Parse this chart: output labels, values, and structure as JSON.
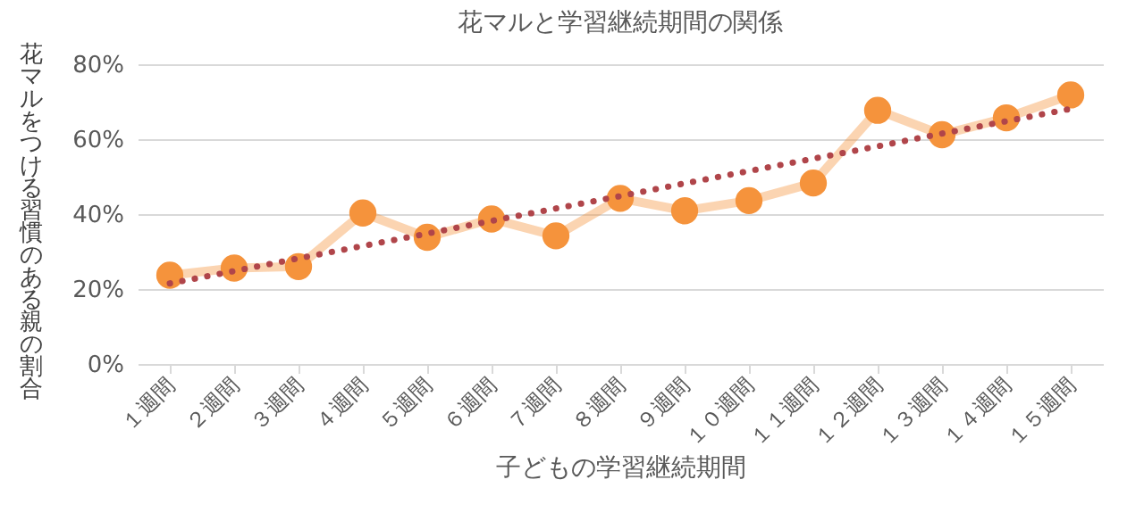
{
  "chart_data": {
    "type": "line",
    "title": "花マルと学習継続期間の関係",
    "xlabel": "子どもの学習継続期間",
    "ylabel": "花マルをつける習慣のある親の割合",
    "categories": [
      "１週間",
      "２週間",
      "３週間",
      "４週間",
      "５週間",
      "６週間",
      "７週間",
      "８週間",
      "９週間",
      "１０週間",
      "１１週間",
      "１２週間",
      "１３週間",
      "１４週間",
      "１５週間"
    ],
    "series": [
      {
        "type": "line",
        "color": "#f5933c",
        "marker": "circle",
        "line_style": "solid",
        "values": [
          23.7,
          25.6,
          26.0,
          40.3,
          33.8,
          38.7,
          34.2,
          44.2,
          40.9,
          43.6,
          48.3,
          67.7,
          61.2,
          65.7,
          71.8
        ]
      },
      {
        "type": "line",
        "color": "#b0454a",
        "marker": "none",
        "line_style": "dotted",
        "values": [
          21.5,
          24.8,
          28.2,
          31.5,
          34.8,
          38.2,
          41.5,
          44.8,
          48.2,
          51.5,
          54.8,
          58.1,
          61.5,
          64.8,
          68.1
        ]
      }
    ],
    "ylim": [
      0,
      80
    ],
    "yticks": [
      {
        "value": 0,
        "label": "0%"
      },
      {
        "value": 20,
        "label": "20%"
      },
      {
        "value": 40,
        "label": "40%"
      },
      {
        "value": 60,
        "label": "60%"
      },
      {
        "value": 80,
        "label": "80%"
      }
    ],
    "grid": "y"
  }
}
